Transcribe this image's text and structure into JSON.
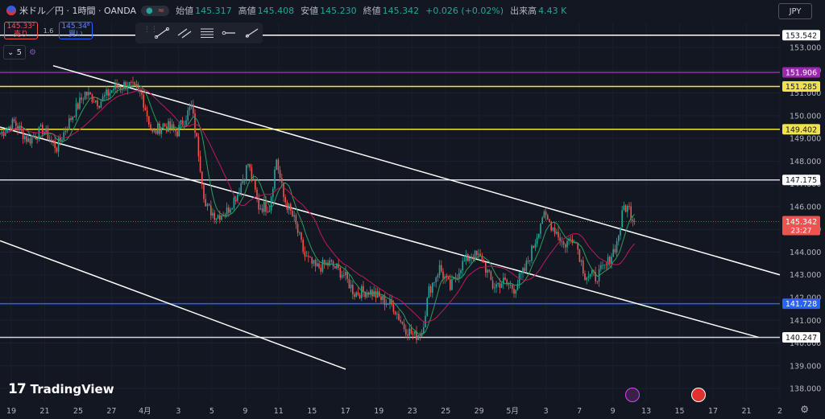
{
  "header": {
    "symbol": "米ドル／円 · 1時間 · OANDA",
    "ohlc": [
      {
        "label": "始値",
        "value": "145.317"
      },
      {
        "label": "高値",
        "value": "145.408"
      },
      {
        "label": "安値",
        "value": "145.230"
      },
      {
        "label": "終値",
        "value": "145.342"
      }
    ],
    "change": "+0.026 (+0.02%)",
    "volume_label": "出来高",
    "volume": "4.43 K",
    "currency": "JPY"
  },
  "trade": {
    "sell_price": "145.33²",
    "sell_label": "売り",
    "spread": "1.6",
    "buy_price": "145.34⁸",
    "buy_label": "買い"
  },
  "indicator": {
    "count": "5"
  },
  "brand": "TradingView",
  "colors": {
    "background": "#131722",
    "up": "#26a69a",
    "down": "#ef5350",
    "ma_fast": "#2e9e5b",
    "ma_slow": "#c2185b",
    "purple": "#9c27b0",
    "yellow": "#f0e34a",
    "blue": "#2962ff",
    "white_line": "#ffffff"
  },
  "chart_data": {
    "type": "candlestick",
    "price_axis": {
      "range": [
        137.4,
        154.1
      ],
      "ticks": [
        138.0,
        139.0,
        140.0,
        141.0,
        142.0,
        143.0,
        144.0,
        145.0,
        146.0,
        147.0,
        148.0,
        149.0,
        150.0,
        151.0,
        152.0,
        153.0
      ]
    },
    "time_axis": {
      "labels": [
        "19",
        "21",
        "25",
        "27",
        "4月",
        "3",
        "5",
        "9",
        "11",
        "15",
        "17",
        "19",
        "23",
        "25",
        "29",
        "5月",
        "3",
        "7",
        "9",
        "13",
        "15",
        "17",
        "21",
        "2"
      ],
      "index_range": [
        0,
        440
      ]
    },
    "horizontal_levels": [
      {
        "price": 153.542,
        "label": "153.542",
        "color": "#ffffff"
      },
      {
        "price": 151.906,
        "label": "151.906",
        "color": "#9c27b0"
      },
      {
        "price": 151.285,
        "label": "151.285",
        "color": "#f0e34a"
      },
      {
        "price": 149.402,
        "label": "149.402",
        "color": "#f0e34a"
      },
      {
        "price": 147.175,
        "label": "147.175",
        "color": "#d1d4dc"
      },
      {
        "price": 141.728,
        "label": "141.728",
        "color": "#2962ff"
      },
      {
        "price": 140.247,
        "label": "140.247",
        "color": "#d1d4dc"
      }
    ],
    "last_price": {
      "price": 145.342,
      "label": "145.342",
      "countdown": "23:27",
      "color": "#ef5350"
    },
    "trend_lines": [
      {
        "from": [
          30,
          152.2
        ],
        "to": [
          440,
          143.0
        ]
      },
      {
        "from": [
          0,
          149.5
        ],
        "to": [
          428,
          140.25
        ]
      },
      {
        "from": [
          0,
          144.5
        ],
        "to": [
          195,
          138.85
        ]
      }
    ],
    "anchors": [
      [
        0,
        149.2
      ],
      [
        8,
        149.7
      ],
      [
        16,
        148.9
      ],
      [
        24,
        149.4
      ],
      [
        32,
        148.6
      ],
      [
        40,
        149.9
      ],
      [
        48,
        151.0
      ],
      [
        56,
        150.6
      ],
      [
        64,
        151.2
      ],
      [
        72,
        151.4
      ],
      [
        80,
        150.9
      ],
      [
        86,
        149.2
      ],
      [
        92,
        149.6
      ],
      [
        100,
        149.3
      ],
      [
        108,
        150.4
      ],
      [
        112,
        148.4
      ],
      [
        116,
        146.0
      ],
      [
        122,
        145.6
      ],
      [
        128,
        145.8
      ],
      [
        134,
        146.6
      ],
      [
        140,
        147.9
      ],
      [
        146,
        146.0
      ],
      [
        152,
        146.0
      ],
      [
        156,
        148.1
      ],
      [
        160,
        146.4
      ],
      [
        166,
        145.4
      ],
      [
        172,
        143.8
      ],
      [
        178,
        143.3
      ],
      [
        186,
        143.5
      ],
      [
        194,
        143.0
      ],
      [
        200,
        142.2
      ],
      [
        208,
        142.3
      ],
      [
        216,
        141.9
      ],
      [
        222,
        141.6
      ],
      [
        228,
        140.7
      ],
      [
        234,
        140.3
      ],
      [
        238,
        140.5
      ],
      [
        242,
        142.3
      ],
      [
        248,
        143.3
      ],
      [
        254,
        142.4
      ],
      [
        260,
        143.4
      ],
      [
        266,
        143.9
      ],
      [
        272,
        143.7
      ],
      [
        278,
        142.5
      ],
      [
        284,
        142.7
      ],
      [
        290,
        142.4
      ],
      [
        296,
        143.2
      ],
      [
        302,
        144.5
      ],
      [
        306,
        145.6
      ],
      [
        310,
        145.3
      ],
      [
        314,
        144.9
      ],
      [
        318,
        144.3
      ],
      [
        324,
        144.7
      ],
      [
        330,
        143.0
      ],
      [
        336,
        142.9
      ],
      [
        342,
        143.4
      ],
      [
        348,
        144.4
      ],
      [
        352,
        146.0
      ],
      [
        355,
        145.9
      ],
      [
        358,
        145.3
      ]
    ],
    "seed": 7
  }
}
